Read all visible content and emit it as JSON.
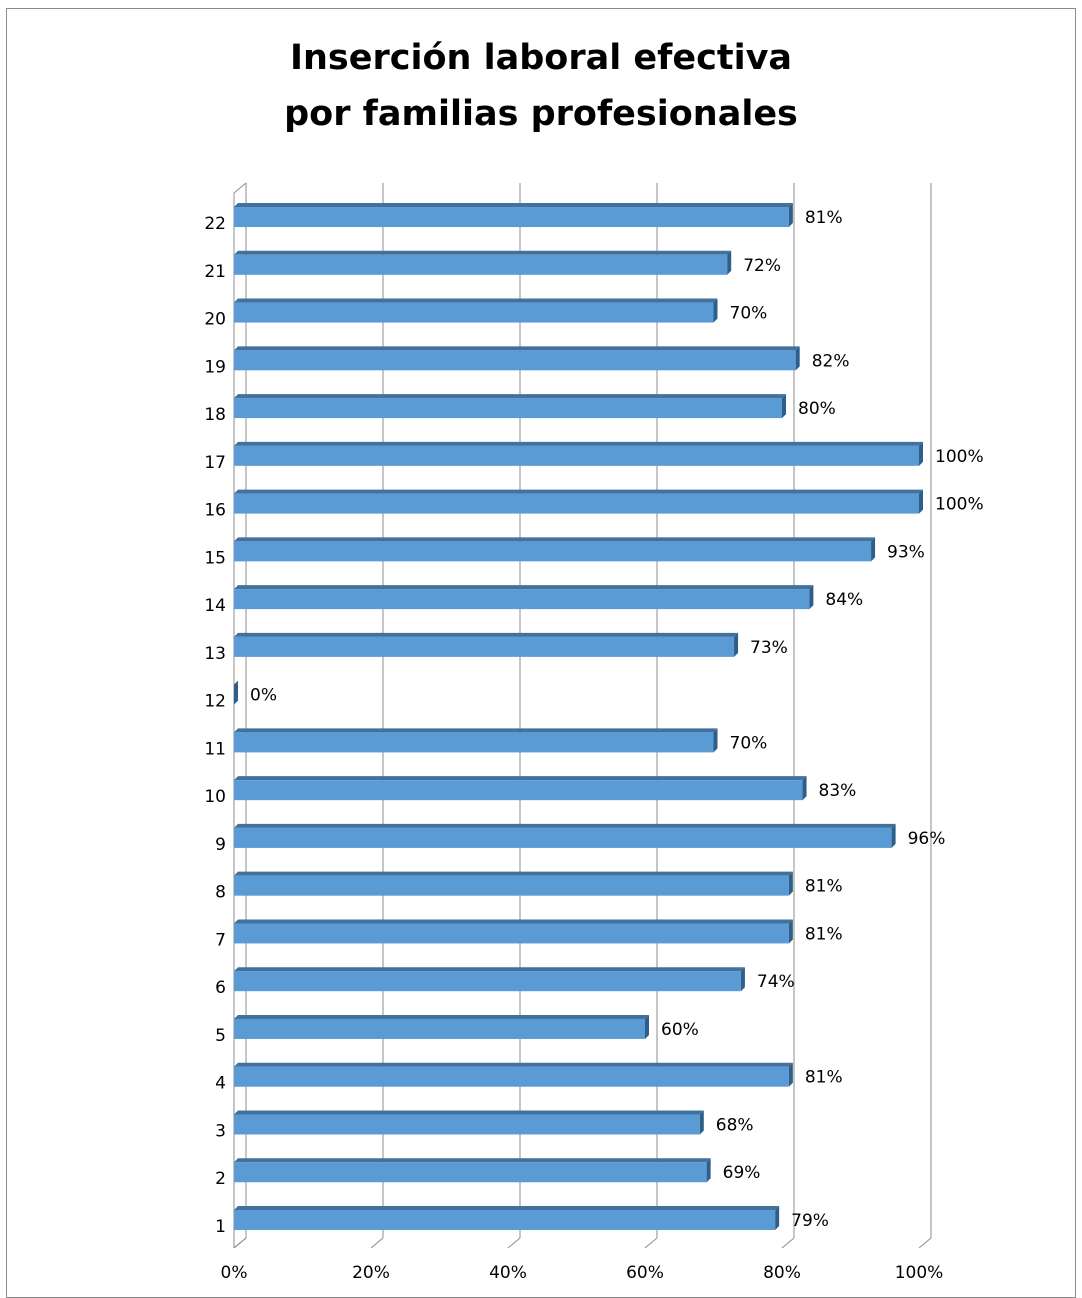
{
  "chart_data": {
    "type": "bar",
    "orientation": "horizontal",
    "title_lines": [
      "Inserción laboral efectiva",
      "por familias profesionales"
    ],
    "categories": [
      "1",
      "2",
      "3",
      "4",
      "5",
      "6",
      "7",
      "8",
      "9",
      "10",
      "11",
      "12",
      "13",
      "14",
      "15",
      "16",
      "17",
      "18",
      "19",
      "20",
      "21",
      "22"
    ],
    "values": [
      0.79,
      0.69,
      0.68,
      0.81,
      0.6,
      0.74,
      0.81,
      0.81,
      0.96,
      0.83,
      0.7,
      0.0,
      0.73,
      0.84,
      0.93,
      1.0,
      1.0,
      0.8,
      0.82,
      0.7,
      0.72,
      0.81
    ],
    "data_labels": [
      "79%",
      "69%",
      "68%",
      "81%",
      "60%",
      "74%",
      "81%",
      "81%",
      "96%",
      "83%",
      "70%",
      "0%",
      "73%",
      "84%",
      "93%",
      "100%",
      "100%",
      "80%",
      "82%",
      "70%",
      "72%",
      "81%"
    ],
    "x_ticks": [
      "0%",
      "20%",
      "40%",
      "60%",
      "80%",
      "100%"
    ],
    "xlim": [
      0,
      1
    ],
    "grid": true,
    "legend": "none",
    "bar_color": "#5b9bd5",
    "bar_top_color": "#41719c",
    "bar_side_color": "#2e5f8a"
  }
}
